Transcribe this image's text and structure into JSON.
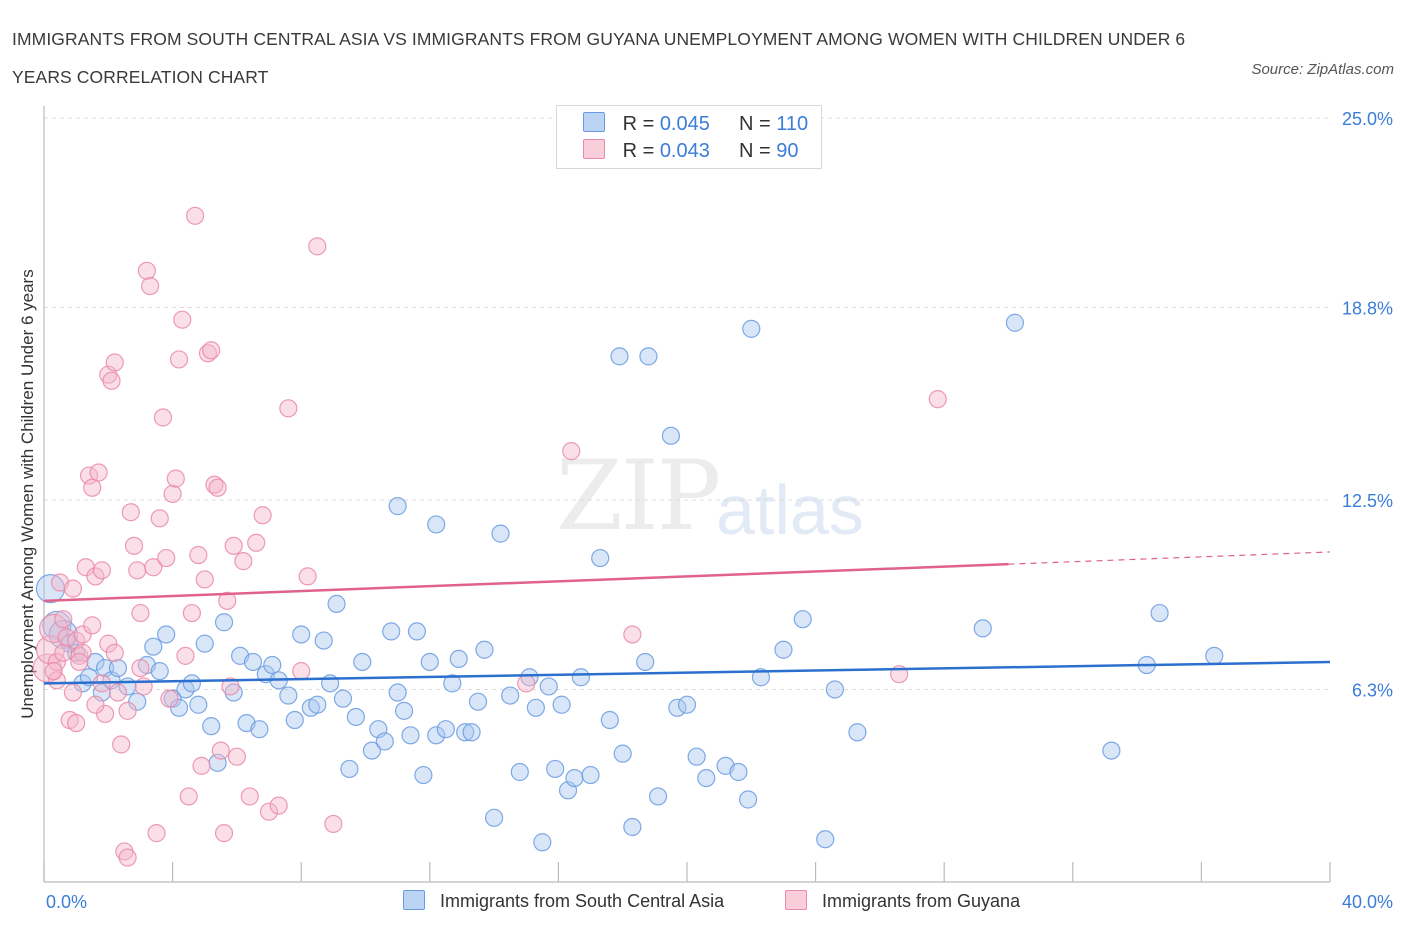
{
  "title": "IMMIGRANTS FROM SOUTH CENTRAL ASIA VS IMMIGRANTS FROM GUYANA UNEMPLOYMENT AMONG WOMEN WITH CHILDREN UNDER 6 YEARS CORRELATION CHART",
  "source": "Source: ZipAtlas.com",
  "watermark": {
    "zip": "ZIP",
    "atlas": "atlas"
  },
  "legend": {
    "r_label": "R =",
    "n_label": "N =",
    "rows": [
      {
        "r": "0.045",
        "n": "110"
      },
      {
        "r": "0.043",
        "n": "90"
      }
    ]
  },
  "colors": {
    "blue_fill": "#a9c8f0",
    "blue_stroke": "#6a9be0",
    "blue_line": "#2b6fcf",
    "pink_fill": "#f5b8cb",
    "pink_stroke": "#ea8aa8",
    "pink_line": "#e0628b",
    "tick_text": "#3b7dd8"
  },
  "chart_data": {
    "type": "scatter",
    "title": "IMMIGRANTS FROM SOUTH CENTRAL ASIA VS IMMIGRANTS FROM GUYANA UNEMPLOYMENT AMONG WOMEN WITH CHILDREN UNDER 6 YEARS CORRELATION CHART",
    "xlabel": "",
    "ylabel": "Unemployment Among Women with Children Under 6 years",
    "xlim": [
      0,
      40
    ],
    "ylim": [
      0,
      25
    ],
    "x_tick_labels": [
      "0.0%",
      "40.0%"
    ],
    "y_tick_labels": [
      "25.0%",
      "18.8%",
      "12.5%",
      "6.3%"
    ],
    "y_tick_values": [
      25.0,
      18.8,
      12.5,
      6.3
    ],
    "grid": true,
    "legend_position": "top-center",
    "series": [
      {
        "name": "Immigrants from South Central Asia",
        "color": "#a9c8f0",
        "trend": {
          "x": [
            0,
            40
          ],
          "y": [
            6.5,
            7.2
          ],
          "solid_until": 40
        },
        "points": [
          [
            0.2,
            9.6
          ],
          [
            0.4,
            8.4
          ],
          [
            0.6,
            8.1
          ],
          [
            0.8,
            7.8
          ],
          [
            1.0,
            7.5
          ],
          [
            1.2,
            6.5
          ],
          [
            1.4,
            6.7
          ],
          [
            1.6,
            7.2
          ],
          [
            1.8,
            6.2
          ],
          [
            1.9,
            7.0
          ],
          [
            2.1,
            6.6
          ],
          [
            2.3,
            7.0
          ],
          [
            2.6,
            6.4
          ],
          [
            2.9,
            5.9
          ],
          [
            3.2,
            7.1
          ],
          [
            3.4,
            7.7
          ],
          [
            3.6,
            6.9
          ],
          [
            3.8,
            8.1
          ],
          [
            4.0,
            6.0
          ],
          [
            4.2,
            5.7
          ],
          [
            4.4,
            6.3
          ],
          [
            4.6,
            6.5
          ],
          [
            4.8,
            5.8
          ],
          [
            5.0,
            7.8
          ],
          [
            5.2,
            5.1
          ],
          [
            5.4,
            3.9
          ],
          [
            5.6,
            8.5
          ],
          [
            5.9,
            6.2
          ],
          [
            6.1,
            7.4
          ],
          [
            6.3,
            5.2
          ],
          [
            6.5,
            7.2
          ],
          [
            6.7,
            5.0
          ],
          [
            6.9,
            6.8
          ],
          [
            7.1,
            7.1
          ],
          [
            7.3,
            6.6
          ],
          [
            7.6,
            6.1
          ],
          [
            7.8,
            5.3
          ],
          [
            8.0,
            8.1
          ],
          [
            8.3,
            5.7
          ],
          [
            8.5,
            5.8
          ],
          [
            8.7,
            7.9
          ],
          [
            8.9,
            6.5
          ],
          [
            9.1,
            9.1
          ],
          [
            9.3,
            6.0
          ],
          [
            9.5,
            3.7
          ],
          [
            9.7,
            5.4
          ],
          [
            9.9,
            7.2
          ],
          [
            10.2,
            4.3
          ],
          [
            10.4,
            5.0
          ],
          [
            10.6,
            4.6
          ],
          [
            10.8,
            8.2
          ],
          [
            11.0,
            6.2
          ],
          [
            11.2,
            5.6
          ],
          [
            11.4,
            4.8
          ],
          [
            11.6,
            8.2
          ],
          [
            11.8,
            3.5
          ],
          [
            12.0,
            7.2
          ],
          [
            12.2,
            4.8
          ],
          [
            12.5,
            5.0
          ],
          [
            12.7,
            6.5
          ],
          [
            12.9,
            7.3
          ],
          [
            13.1,
            4.9
          ],
          [
            13.3,
            4.9
          ],
          [
            13.5,
            5.9
          ],
          [
            13.7,
            7.6
          ],
          [
            14.0,
            2.1
          ],
          [
            14.2,
            11.4
          ],
          [
            14.5,
            6.1
          ],
          [
            14.8,
            3.6
          ],
          [
            15.1,
            6.7
          ],
          [
            15.3,
            5.7
          ],
          [
            15.5,
            1.3
          ],
          [
            15.7,
            6.4
          ],
          [
            15.9,
            3.7
          ],
          [
            16.1,
            5.8
          ],
          [
            16.3,
            3.0
          ],
          [
            16.5,
            3.4
          ],
          [
            16.7,
            6.7
          ],
          [
            17.0,
            3.5
          ],
          [
            17.3,
            10.6
          ],
          [
            17.6,
            5.3
          ],
          [
            18.0,
            4.2
          ],
          [
            18.3,
            1.8
          ],
          [
            18.7,
            7.2
          ],
          [
            19.1,
            2.8
          ],
          [
            19.5,
            14.6
          ],
          [
            19.7,
            5.7
          ],
          [
            20.0,
            5.8
          ],
          [
            20.3,
            4.1
          ],
          [
            20.6,
            3.4
          ],
          [
            21.2,
            3.8
          ],
          [
            21.6,
            3.6
          ],
          [
            21.9,
            2.7
          ],
          [
            22.3,
            6.7
          ],
          [
            23.0,
            7.6
          ],
          [
            23.6,
            8.6
          ],
          [
            24.3,
            1.4
          ],
          [
            24.6,
            6.3
          ],
          [
            25.3,
            4.9
          ],
          [
            29.2,
            8.3
          ],
          [
            30.2,
            18.3
          ],
          [
            33.2,
            4.3
          ],
          [
            34.3,
            7.1
          ],
          [
            34.7,
            8.8
          ],
          [
            36.4,
            7.4
          ],
          [
            18.8,
            17.2
          ],
          [
            17.9,
            17.2
          ],
          [
            22.0,
            18.1
          ],
          [
            11.0,
            12.3
          ],
          [
            12.2,
            11.7
          ]
        ]
      },
      {
        "name": "Immigrants from Guyana",
        "color": "#f5b8cb",
        "trend": {
          "x": [
            0,
            40
          ],
          "y": [
            9.2,
            10.8
          ],
          "solid_until": 30
        },
        "points": [
          [
            0.1,
            7.0
          ],
          [
            0.2,
            7.6
          ],
          [
            0.3,
            8.3
          ],
          [
            0.4,
            7.2
          ],
          [
            0.5,
            9.8
          ],
          [
            0.6,
            7.5
          ],
          [
            0.7,
            8.0
          ],
          [
            0.8,
            5.3
          ],
          [
            0.9,
            9.6
          ],
          [
            1.0,
            7.9
          ],
          [
            1.1,
            7.4
          ],
          [
            1.2,
            8.1
          ],
          [
            1.3,
            10.3
          ],
          [
            1.4,
            13.3
          ],
          [
            1.5,
            12.9
          ],
          [
            1.6,
            10.0
          ],
          [
            1.7,
            13.4
          ],
          [
            1.8,
            6.5
          ],
          [
            1.9,
            5.5
          ],
          [
            2.0,
            16.6
          ],
          [
            2.1,
            16.4
          ],
          [
            2.2,
            17.0
          ],
          [
            2.3,
            6.2
          ],
          [
            2.4,
            4.5
          ],
          [
            2.5,
            1.0
          ],
          [
            2.6,
            0.8
          ],
          [
            2.7,
            12.1
          ],
          [
            2.8,
            11.0
          ],
          [
            2.9,
            10.2
          ],
          [
            3.0,
            7.0
          ],
          [
            3.1,
            6.4
          ],
          [
            3.2,
            20.0
          ],
          [
            3.3,
            19.5
          ],
          [
            3.4,
            10.3
          ],
          [
            3.5,
            1.6
          ],
          [
            3.6,
            11.9
          ],
          [
            3.7,
            15.2
          ],
          [
            3.8,
            10.6
          ],
          [
            3.9,
            6.0
          ],
          [
            4.0,
            12.7
          ],
          [
            4.1,
            13.2
          ],
          [
            4.2,
            17.1
          ],
          [
            4.3,
            18.4
          ],
          [
            4.4,
            7.4
          ],
          [
            4.5,
            2.8
          ],
          [
            4.6,
            8.8
          ],
          [
            4.7,
            21.8
          ],
          [
            4.8,
            10.7
          ],
          [
            4.9,
            3.8
          ],
          [
            5.0,
            9.9
          ],
          [
            5.1,
            17.3
          ],
          [
            5.2,
            17.4
          ],
          [
            5.3,
            13.0
          ],
          [
            5.4,
            12.9
          ],
          [
            5.5,
            4.3
          ],
          [
            5.6,
            1.6
          ],
          [
            5.7,
            9.2
          ],
          [
            5.8,
            6.4
          ],
          [
            5.9,
            11.0
          ],
          [
            6.0,
            4.1
          ],
          [
            6.2,
            10.5
          ],
          [
            6.4,
            2.8
          ],
          [
            6.6,
            11.1
          ],
          [
            6.8,
            12.0
          ],
          [
            7.0,
            2.3
          ],
          [
            7.3,
            2.5
          ],
          [
            7.6,
            15.5
          ],
          [
            8.0,
            6.9
          ],
          [
            8.2,
            10.0
          ],
          [
            8.5,
            20.8
          ],
          [
            9.0,
            1.9
          ],
          [
            1.0,
            5.2
          ],
          [
            1.2,
            7.5
          ],
          [
            1.5,
            8.4
          ],
          [
            2.0,
            7.8
          ],
          [
            2.2,
            7.5
          ],
          [
            0.9,
            6.2
          ],
          [
            1.6,
            5.8
          ],
          [
            3.0,
            8.8
          ],
          [
            1.8,
            10.2
          ],
          [
            0.4,
            6.6
          ],
          [
            0.6,
            8.6
          ],
          [
            1.1,
            7.2
          ],
          [
            16.4,
            14.1
          ],
          [
            18.3,
            8.1
          ],
          [
            15.0,
            6.5
          ],
          [
            27.8,
            15.8
          ],
          [
            26.6,
            6.8
          ],
          [
            2.6,
            5.6
          ],
          [
            0.3,
            6.9
          ]
        ]
      }
    ]
  },
  "bottom_legend": [
    {
      "label": "Immigrants from South Central Asia"
    },
    {
      "label": "Immigrants from Guyana"
    }
  ]
}
